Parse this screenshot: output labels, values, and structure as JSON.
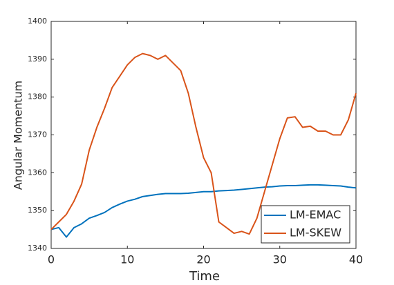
{
  "chart_data": {
    "type": "line",
    "xlabel": "Time",
    "ylabel": "Angular Momentum",
    "x": [
      0,
      1,
      2,
      3,
      4,
      5,
      6,
      7,
      8,
      9,
      10,
      11,
      12,
      13,
      14,
      15,
      16,
      17,
      18,
      19,
      20,
      21,
      22,
      23,
      24,
      25,
      26,
      27,
      28,
      29,
      30,
      31,
      32,
      33,
      34,
      35,
      36,
      37,
      38,
      39,
      40
    ],
    "series": [
      {
        "name": "LM-EMAC",
        "color": "#0072BD",
        "values": [
          1345,
          1345.5,
          1343,
          1345.5,
          1346.5,
          1348,
          1348.7,
          1349.5,
          1350.8,
          1351.7,
          1352.5,
          1353,
          1353.7,
          1354,
          1354.3,
          1354.5,
          1354.5,
          1354.5,
          1354.6,
          1354.8,
          1355,
          1355,
          1355.2,
          1355.3,
          1355.4,
          1355.6,
          1355.8,
          1356,
          1356.2,
          1356.3,
          1356.5,
          1356.6,
          1356.6,
          1356.7,
          1356.8,
          1356.8,
          1356.7,
          1356.6,
          1356.5,
          1356.2,
          1356
        ]
      },
      {
        "name": "LM-SKEW",
        "color": "#D95319",
        "values": [
          1345,
          1347,
          1349,
          1352.5,
          1357,
          1366,
          1372,
          1377,
          1382.5,
          1385.5,
          1388.5,
          1390.5,
          1391.5,
          1391,
          1390,
          1391,
          1389,
          1387,
          1381,
          1372,
          1364,
          1360,
          1347,
          1345.5,
          1344,
          1344.5,
          1343.8,
          1348,
          1355,
          1362,
          1369,
          1374.5,
          1374.8,
          1372,
          1372.3,
          1371,
          1371,
          1370,
          1370,
          1374,
          1381
        ]
      }
    ],
    "xlim": [
      0,
      40
    ],
    "xticks": [
      0,
      10,
      20,
      30,
      40
    ],
    "ylim": [
      1340,
      1400
    ],
    "yticks": [
      1340,
      1350,
      1360,
      1370,
      1380,
      1390,
      1400
    ],
    "legend": "lower right"
  }
}
